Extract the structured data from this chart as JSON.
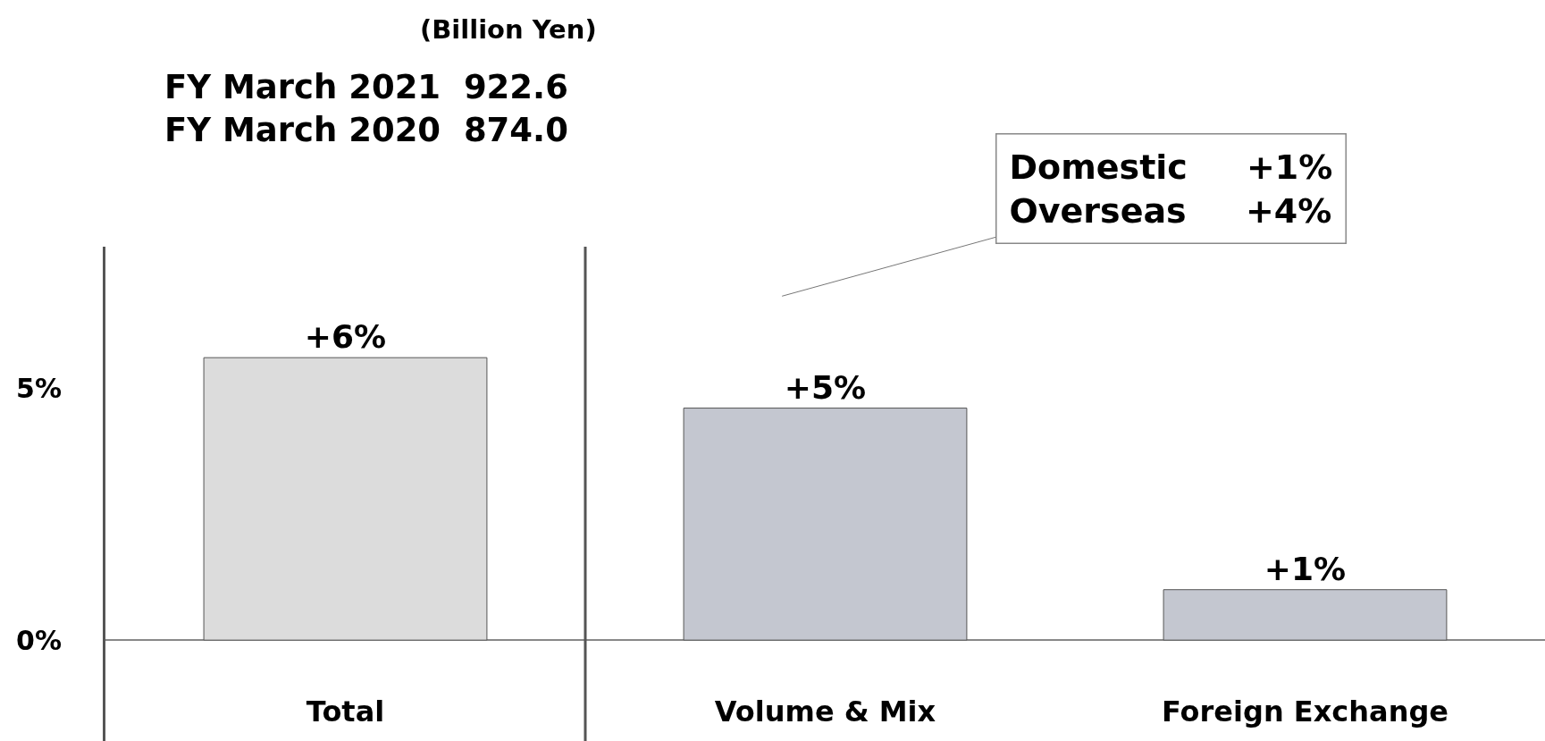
{
  "chart_data": {
    "type": "bar",
    "categories": [
      "Total",
      "Volume & Mix",
      "Foreign Exchange"
    ],
    "values": [
      5.6,
      4.6,
      1.0
    ],
    "colors": [
      "#dcdcdc",
      "#c4c7d0",
      "#c4c7d0"
    ],
    "value_labels": [
      "+6%",
      "+5%",
      "+1%"
    ],
    "ylim": [
      -2,
      7.8
    ],
    "yticks": [
      {
        "value": 0,
        "label": "0%"
      },
      {
        "value": 5,
        "label": "5%"
      }
    ],
    "annotations": [
      "(Billion Yen)",
      "FY March 2021  922.6\nFY March 2020  874.0",
      "Domestic     +1%\nOverseas     +4%"
    ]
  }
}
